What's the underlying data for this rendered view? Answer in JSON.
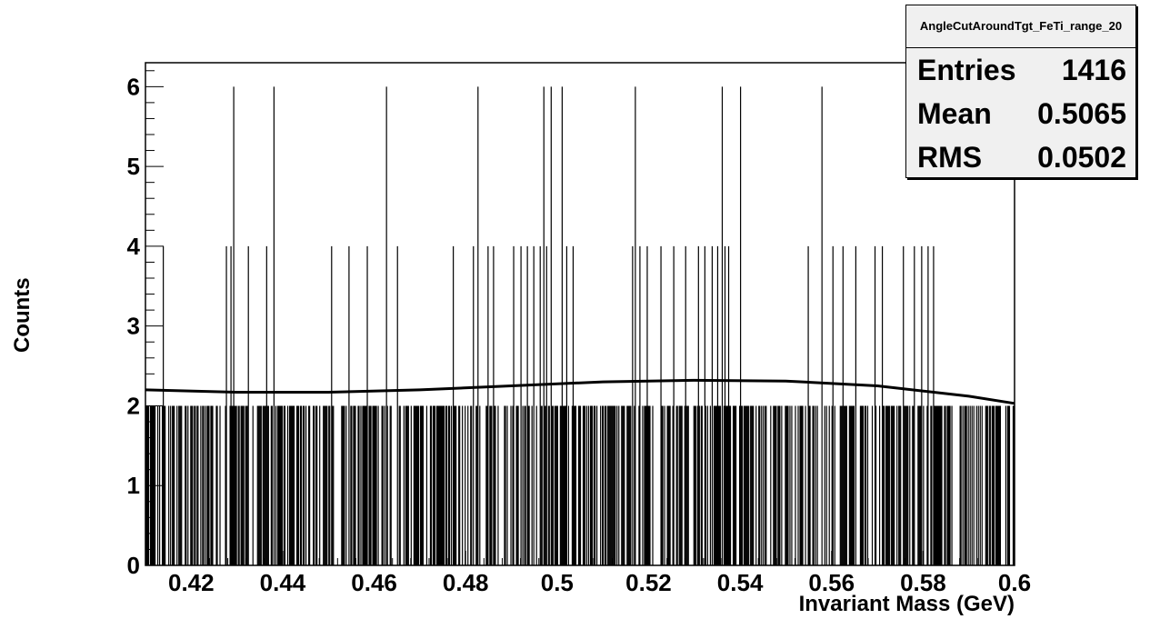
{
  "chart_data": {
    "type": "bar",
    "title": "",
    "xlabel": "Invariant Mass (GeV)",
    "ylabel": "Counts",
    "xlim": [
      0.41,
      0.6
    ],
    "ylim": [
      0,
      6.3
    ],
    "xticks": [
      "0.42",
      "0.44",
      "0.46",
      "0.48",
      "0.5",
      "0.52",
      "0.54",
      "0.56",
      "0.58",
      "0.6"
    ],
    "yticks": [
      "0",
      "1",
      "2",
      "3",
      "4",
      "5",
      "6"
    ],
    "bin_width": 0.0002,
    "series": [
      {
        "name": "AngleCutAroundTgt_FeTi_range_20",
        "height_6_bins": [
          0.4292,
          0.438,
          0.4626,
          0.4826,
          0.497,
          0.4986,
          0.501,
          0.517,
          0.536,
          0.54,
          0.5578
        ],
        "height_4_bins": [
          0.4138,
          0.4276,
          0.4286,
          0.4324,
          0.4364,
          0.4506,
          0.4544,
          0.4584,
          0.465,
          0.4772,
          0.4816,
          0.4848,
          0.486,
          0.4904,
          0.492,
          0.4934,
          0.4948,
          0.4962,
          0.4976,
          0.502,
          0.5034,
          0.5164,
          0.518,
          0.5196,
          0.5226,
          0.5254,
          0.528,
          0.5308,
          0.5322,
          0.5338,
          0.535,
          0.5366,
          0.5374,
          0.5548,
          0.5602,
          0.5624,
          0.5652,
          0.5694,
          0.571,
          0.5756,
          0.578,
          0.5796,
          0.581,
          0.5822
        ],
        "height_2_bins_dense": "nearly every bin from 0.410 to 0.600",
        "fit_curve_x": [
          0.41,
          0.43,
          0.45,
          0.47,
          0.49,
          0.51,
          0.53,
          0.55,
          0.57,
          0.59,
          0.6
        ],
        "fit_curve_y": [
          2.2,
          2.17,
          2.17,
          2.2,
          2.25,
          2.3,
          2.32,
          2.31,
          2.25,
          2.12,
          2.03
        ]
      }
    ],
    "stats": {
      "name": "AngleCutAroundTgt_FeTi_range_20",
      "entries_label": "Entries",
      "entries": "1416",
      "mean_label": "Mean",
      "mean": "0.5065",
      "rms_label": "RMS",
      "rms": "0.0502"
    },
    "legend_position": "top-right",
    "grid": false
  }
}
